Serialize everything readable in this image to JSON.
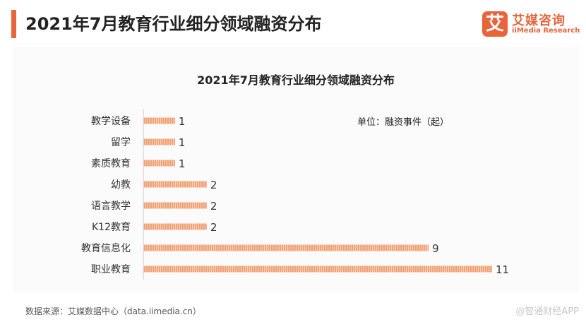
{
  "header": {
    "title": "2021年7月教育行业细分领域融资分布"
  },
  "logo": {
    "mark": "艾",
    "name_cn": "艾媒咨询",
    "name_en": "iiMedia Research"
  },
  "source": "数据来源：艾媒数据中心（data.iimedia.cn）",
  "watermark": "@智通财经APP",
  "colors": {
    "accent": "#e8643c",
    "bar": "#f0a478"
  },
  "chart_data": {
    "type": "bar",
    "orientation": "horizontal",
    "title": "2021年7月教育行业细分领域融资分布",
    "unit_note": "单位：融资事件（起）",
    "categories": [
      "教学设备",
      "留学",
      "素质教育",
      "幼教",
      "语言教学",
      "K12教育",
      "教育信息化",
      "职业教育"
    ],
    "values": [
      1,
      1,
      1,
      2,
      2,
      2,
      9,
      11
    ],
    "xlim": [
      0,
      11
    ],
    "data_labels": true,
    "grid": false,
    "legend": "none"
  }
}
